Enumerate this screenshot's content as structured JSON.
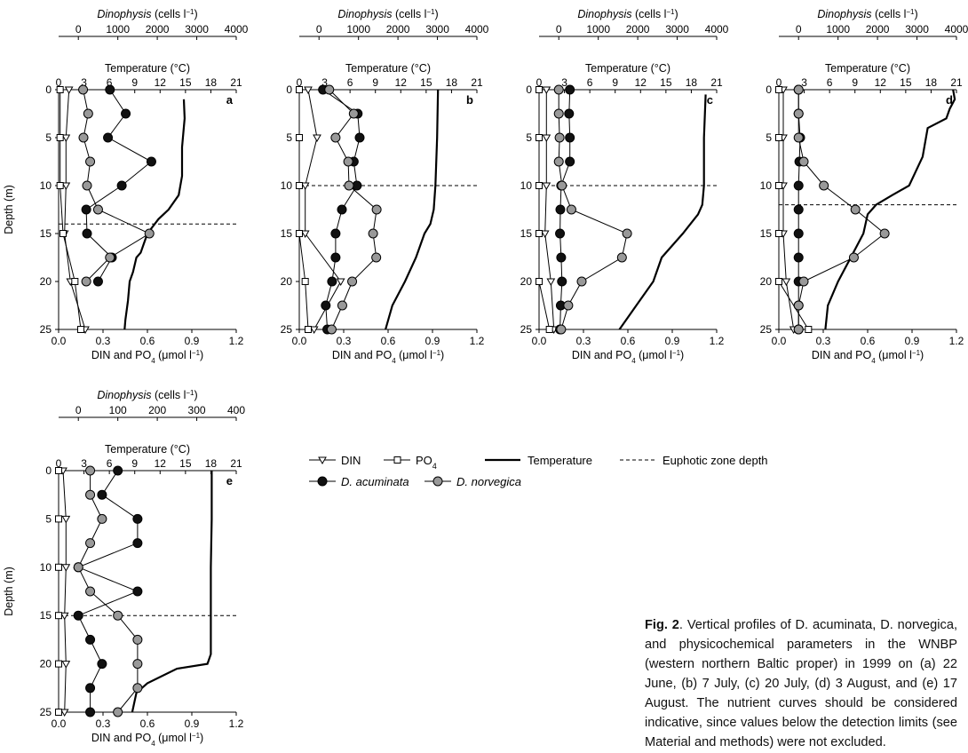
{
  "shared": {
    "dino_label": "Dinophysis",
    "dino_units": "(cells l",
    "sup_minus1": "−1",
    "paren": ")",
    "temp_label": "Temperature (°C)",
    "depth_label": "Depth (m)",
    "nutrient_label": "DIN and PO",
    "sub4": "4",
    "nutrient_units": " (μmol l"
  },
  "legend": {
    "din": "DIN",
    "po4": "PO",
    "po4_sub": "4",
    "temperature": "Temperature",
    "euphotic": "Euphotic zone depth",
    "acuminata": "D. acuminata",
    "norvegica": "D. norvegica"
  },
  "caption": {
    "fig_label": "Fig. 2",
    "text": "Vertical profiles of D. acuminata, D. norvegica, and physicochemical parameters in the WNBP (western northern Baltic proper) in 1999 on (a) 22 June, (b) 7 July, (c) 20 July, (d) 3 August, and (e) 17 August. The nutrient curves should be considered indicative, since values below the detection limits (see Material and methods) were not excluded."
  },
  "chart_data": [
    {
      "type": "line",
      "panel_label": "a",
      "depth": {
        "label": "Depth (m)",
        "lim": [
          0,
          25
        ],
        "ticks": [
          0,
          5,
          10,
          15,
          20,
          25
        ]
      },
      "nutrient_axis": {
        "lim": [
          0,
          1.2
        ],
        "ticks": [
          "0.0",
          "0.3",
          "0.6",
          "0.9",
          "1.2"
        ]
      },
      "temp_axis": {
        "lim": [
          0,
          21
        ],
        "ticks": [
          "0",
          "3",
          "6",
          "9",
          "12",
          "15",
          "18",
          "21"
        ]
      },
      "dino_axis": {
        "lim": [
          -500,
          4000
        ],
        "ticks": [
          "0",
          "1000",
          "2000",
          "3000",
          "4000"
        ]
      },
      "euphotic_depth": 14,
      "series": [
        {
          "name": "DIN",
          "axis": "nutrient",
          "depths": [
            0,
            5,
            10,
            15,
            20,
            25
          ],
          "values": [
            0.07,
            0.05,
            0.05,
            0.04,
            0.08,
            0.18
          ]
        },
        {
          "name": "PO4",
          "axis": "nutrient",
          "depths": [
            0,
            5,
            10,
            15,
            20,
            25
          ],
          "values": [
            0.01,
            0.01,
            0.01,
            0.03,
            0.11,
            0.15
          ]
        },
        {
          "name": "Temperature",
          "axis": "temp",
          "depths": [
            1,
            3,
            6,
            9,
            11,
            12.5,
            13.5,
            15,
            16,
            17,
            17.5,
            19,
            20,
            22,
            24,
            25
          ],
          "values": [
            14.8,
            14.9,
            14.6,
            14.6,
            14.2,
            13.0,
            11.8,
            10.5,
            10.1,
            9.7,
            9.2,
            8.8,
            8.4,
            8.2,
            7.9,
            7.8
          ]
        },
        {
          "name": "D. acuminata",
          "axis": "dino",
          "depths": [
            0,
            2.5,
            5,
            7.5,
            10,
            12.5,
            15,
            17.5,
            20,
            22.5,
            25
          ],
          "values": [
            800,
            1200,
            750,
            1850,
            1100,
            200,
            220,
            850,
            500,
            null,
            null
          ]
        },
        {
          "name": "D. norvegica",
          "axis": "dino",
          "depths": [
            0,
            2.5,
            5,
            7.5,
            10,
            12.5,
            15,
            17.5,
            20,
            22.5,
            25
          ],
          "values": [
            120,
            250,
            130,
            300,
            220,
            500,
            1800,
            800,
            200,
            null,
            null
          ]
        }
      ]
    },
    {
      "type": "line",
      "panel_label": "b",
      "depth": {
        "label": "Depth (m)",
        "lim": [
          0,
          25
        ],
        "ticks": [
          0,
          5,
          10,
          15,
          20,
          25
        ]
      },
      "nutrient_axis": {
        "lim": [
          0,
          1.2
        ],
        "ticks": [
          "0.0",
          "0.3",
          "0.6",
          "0.9",
          "1.2"
        ]
      },
      "temp_axis": {
        "lim": [
          0,
          21
        ],
        "ticks": [
          "0",
          "3",
          "6",
          "9",
          "12",
          "15",
          "18",
          "21"
        ]
      },
      "dino_axis": {
        "lim": [
          -500,
          4000
        ],
        "ticks": [
          "0",
          "1000",
          "2000",
          "3000",
          "4000"
        ]
      },
      "euphotic_depth": 10,
      "series": [
        {
          "name": "DIN",
          "axis": "nutrient",
          "depths": [
            0,
            5,
            10,
            15,
            20,
            25
          ],
          "values": [
            0.06,
            0.12,
            0.04,
            0.04,
            0.28,
            0.1
          ]
        },
        {
          "name": "PO4",
          "axis": "nutrient",
          "depths": [
            0,
            5,
            10,
            15,
            20,
            25
          ],
          "values": [
            0.0,
            0.0,
            0.0,
            0.0,
            0.04,
            0.06
          ]
        },
        {
          "name": "Temperature",
          "axis": "temp",
          "depths": [
            0,
            5,
            10,
            12.5,
            14,
            15,
            17.5,
            20,
            22.5,
            25
          ],
          "values": [
            16.4,
            16.3,
            16.1,
            15.9,
            15.5,
            14.8,
            13.8,
            12.5,
            11.0,
            10.2
          ]
        },
        {
          "name": "D. acuminata",
          "axis": "dino",
          "depths": [
            0,
            2.5,
            5,
            7.5,
            10,
            12.5,
            15,
            17.5,
            20,
            22.5,
            25
          ],
          "values": [
            100,
            980,
            1030,
            880,
            960,
            580,
            420,
            420,
            330,
            170,
            210
          ]
        },
        {
          "name": "D. norvegica",
          "axis": "dino",
          "depths": [
            0,
            2.5,
            5,
            7.5,
            10,
            12.5,
            15,
            17.5,
            20,
            22.5,
            25
          ],
          "values": [
            260,
            880,
            420,
            740,
            760,
            1460,
            1370,
            1450,
            840,
            590,
            320
          ]
        }
      ]
    },
    {
      "type": "line",
      "panel_label": "c",
      "depth": {
        "label": "Depth (m)",
        "lim": [
          0,
          25
        ],
        "ticks": [
          0,
          5,
          10,
          15,
          20,
          25
        ]
      },
      "nutrient_axis": {
        "lim": [
          0,
          1.2
        ],
        "ticks": [
          "0.0",
          "0.3",
          "0.6",
          "0.9",
          "1.2"
        ]
      },
      "temp_axis": {
        "lim": [
          0,
          21
        ],
        "ticks": [
          "0",
          "3",
          "6",
          "9",
          "12",
          "15",
          "18",
          "21"
        ]
      },
      "dino_axis": {
        "lim": [
          -500,
          4000
        ],
        "ticks": [
          "0",
          "1000",
          "2000",
          "3000",
          "4000"
        ]
      },
      "euphotic_depth": 10,
      "series": [
        {
          "name": "DIN",
          "axis": "nutrient",
          "depths": [
            0,
            5,
            10,
            15,
            20,
            25
          ],
          "values": [
            0.05,
            0.05,
            0.05,
            0.04,
            0.08,
            0.1
          ]
        },
        {
          "name": "PO4",
          "axis": "nutrient",
          "depths": [
            0,
            5,
            10,
            15,
            20,
            25
          ],
          "values": [
            0.0,
            0.0,
            0.0,
            0.0,
            0.0,
            0.07
          ]
        },
        {
          "name": "Temperature",
          "axis": "temp",
          "depths": [
            0.5,
            5,
            10,
            12,
            13,
            15,
            17.5,
            20,
            22.5,
            25
          ],
          "values": [
            19.7,
            19.5,
            19.5,
            19.3,
            18.8,
            17.0,
            14.5,
            13.5,
            11.5,
            9.5
          ]
        },
        {
          "name": "D. acuminata",
          "axis": "dino",
          "depths": [
            0,
            2.5,
            5,
            7.5,
            10,
            12.5,
            15,
            17.5,
            20,
            22.5,
            25
          ],
          "values": [
            280,
            260,
            280,
            280,
            60,
            40,
            30,
            60,
            80,
            50,
            30
          ]
        },
        {
          "name": "D. norvegica",
          "axis": "dino",
          "depths": [
            0,
            2.5,
            5,
            7.5,
            10,
            12.5,
            15,
            17.5,
            20,
            22.5,
            25
          ],
          "values": [
            0,
            0,
            20,
            0,
            80,
            320,
            1730,
            1600,
            580,
            240,
            60
          ]
        }
      ]
    },
    {
      "type": "line",
      "panel_label": "d",
      "depth": {
        "label": "Depth (m)",
        "lim": [
          0,
          25
        ],
        "ticks": [
          0,
          5,
          10,
          15,
          20,
          25
        ]
      },
      "nutrient_axis": {
        "lim": [
          0,
          1.2
        ],
        "ticks": [
          "0.0",
          "0.3",
          "0.6",
          "0.9",
          "1.2"
        ]
      },
      "temp_axis": {
        "lim": [
          0,
          21
        ],
        "ticks": [
          "0",
          "3",
          "6",
          "9",
          "12",
          "15",
          "18",
          "21"
        ]
      },
      "dino_axis": {
        "lim": [
          -500,
          4000
        ],
        "ticks": [
          "0",
          "1000",
          "2000",
          "3000",
          "4000"
        ]
      },
      "euphotic_depth": 12,
      "series": [
        {
          "name": "DIN",
          "axis": "nutrient",
          "depths": [
            0,
            5,
            10,
            15,
            20,
            25
          ],
          "values": [
            0.03,
            0.03,
            0.03,
            0.03,
            0.05,
            0.1
          ]
        },
        {
          "name": "PO4",
          "axis": "nutrient",
          "depths": [
            0,
            5,
            10,
            15,
            20,
            25
          ],
          "values": [
            0.0,
            0.0,
            0.0,
            0.0,
            0.0,
            0.2
          ]
        },
        {
          "name": "Temperature",
          "axis": "temp",
          "depths": [
            0,
            1,
            2,
            3,
            4,
            7,
            10,
            11,
            12,
            13,
            15,
            17.5,
            20,
            22.5,
            25
          ],
          "values": [
            20.6,
            20.8,
            20.2,
            19.8,
            17.6,
            17.0,
            15.4,
            13.4,
            11.5,
            10.5,
            10.0,
            8.5,
            7.0,
            5.8,
            5.5
          ]
        },
        {
          "name": "D. acuminata",
          "axis": "dino",
          "depths": [
            0,
            2.5,
            5,
            7.5,
            10,
            12.5,
            15,
            17.5,
            20,
            22.5,
            25
          ],
          "values": [
            0,
            0,
            40,
            20,
            0,
            0,
            0,
            0,
            0,
            0,
            0
          ]
        },
        {
          "name": "D. norvegica",
          "axis": "dino",
          "depths": [
            0,
            2.5,
            5,
            7.5,
            10,
            12.5,
            15,
            17.5,
            20,
            22.5,
            25
          ],
          "values": [
            0,
            0,
            0,
            130,
            640,
            1440,
            2180,
            1400,
            130,
            0,
            0
          ]
        }
      ]
    },
    {
      "type": "line",
      "panel_label": "e",
      "depth": {
        "label": "Depth (m)",
        "lim": [
          0,
          25
        ],
        "ticks": [
          0,
          5,
          10,
          15,
          20,
          25
        ]
      },
      "nutrient_axis": {
        "lim": [
          0,
          1.2
        ],
        "ticks": [
          "0.0",
          "0.3",
          "0.6",
          "0.9",
          "1.2"
        ]
      },
      "temp_axis": {
        "lim": [
          0,
          21
        ],
        "ticks": [
          "0",
          "3",
          "6",
          "9",
          "12",
          "15",
          "18",
          "21"
        ]
      },
      "dino_axis": {
        "lim": [
          -50,
          400
        ],
        "ticks": [
          "0",
          "100",
          "200",
          "300",
          "400"
        ]
      },
      "euphotic_depth": 15,
      "series": [
        {
          "name": "DIN",
          "axis": "nutrient",
          "depths": [
            0,
            5,
            10,
            15,
            20,
            25
          ],
          "values": [
            0.03,
            0.05,
            0.05,
            0.04,
            0.05,
            0.04
          ]
        },
        {
          "name": "PO4",
          "axis": "nutrient",
          "depths": [
            0,
            5,
            10,
            15,
            20,
            25
          ],
          "values": [
            0.0,
            0.0,
            0.0,
            0.0,
            0.0,
            0.0
          ]
        },
        {
          "name": "Temperature",
          "axis": "temp",
          "depths": [
            0,
            5,
            10,
            15,
            19,
            20,
            20.5,
            22,
            23,
            25
          ],
          "values": [
            18.1,
            18.1,
            18.0,
            18.0,
            18.0,
            17.6,
            14.0,
            10.5,
            9.2,
            8.7
          ]
        },
        {
          "name": "D. acuminata",
          "axis": "dino",
          "depths": [
            0,
            2.5,
            5,
            7.5,
            10,
            12.5,
            15,
            17.5,
            20,
            22.5,
            25
          ],
          "values": [
            100,
            60,
            150,
            150,
            0,
            150,
            0,
            30,
            60,
            30,
            30
          ]
        },
        {
          "name": "D. norvegica",
          "axis": "dino",
          "depths": [
            0,
            2.5,
            5,
            7.5,
            10,
            12.5,
            15,
            17.5,
            20,
            22.5,
            25
          ],
          "values": [
            30,
            30,
            60,
            30,
            0,
            30,
            100,
            150,
            150,
            150,
            100
          ]
        }
      ]
    }
  ]
}
